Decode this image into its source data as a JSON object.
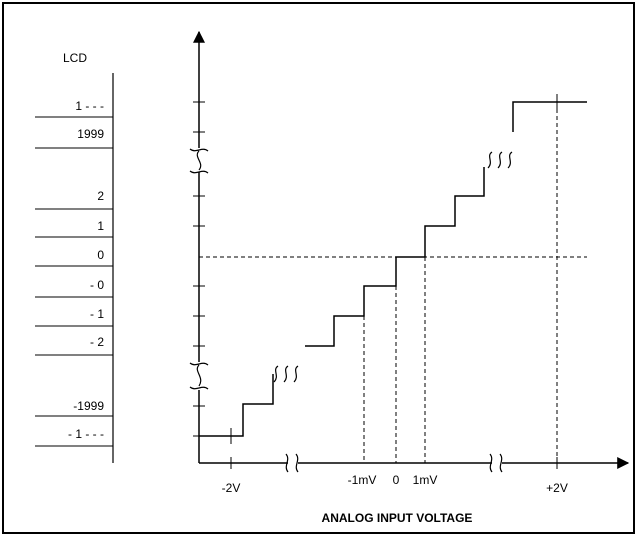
{
  "lcd": {
    "header": "LCD",
    "rows": [
      "1 - - -",
      "1999",
      "2",
      "1",
      "0",
      "- 0",
      "- 1",
      "- 2",
      "-1999",
      "- 1 - - -"
    ]
  },
  "x_axis": {
    "title": "ANALOG INPUT VOLTAGE",
    "ticks": [
      "-2V",
      "-1mV",
      "0",
      "1mV",
      "+2V"
    ]
  },
  "colors": {
    "line": "#000000",
    "background": "#ffffff"
  }
}
